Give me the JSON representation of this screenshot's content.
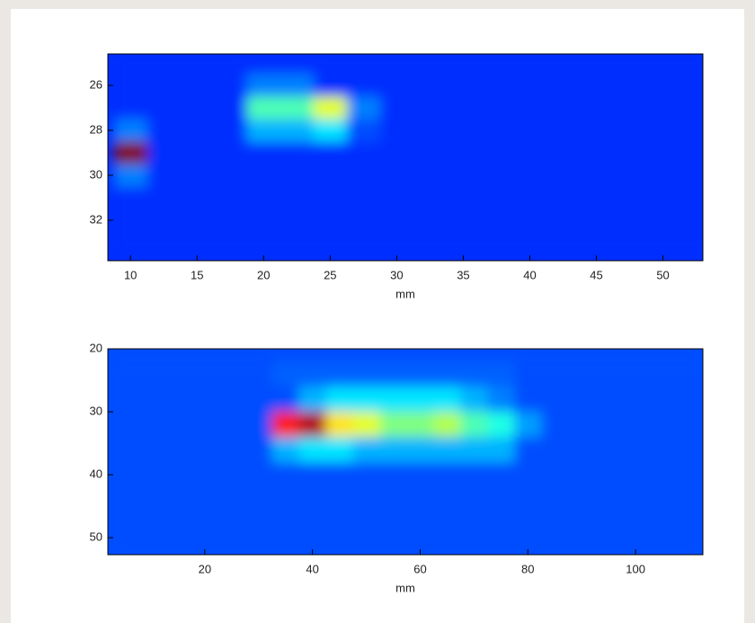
{
  "chart_data": [
    {
      "type": "heatmap",
      "xlabel": "mm",
      "x": [
        10,
        12.5,
        15,
        17.5,
        20,
        22.5,
        25,
        27.5,
        30,
        32.5,
        35,
        37.5,
        40,
        42.5,
        45,
        47.5,
        50,
        52.5
      ],
      "y": [
        25,
        26,
        27,
        28,
        29,
        30,
        31,
        32,
        33
      ],
      "values": [
        [
          0.17,
          0.17,
          0.17,
          0.17,
          0.17,
          0.17,
          0.17,
          0.17,
          0.17,
          0.17,
          0.17,
          0.17,
          0.17,
          0.17,
          0.17,
          0.17,
          0.17,
          0.17
        ],
        [
          0.17,
          0.17,
          0.17,
          0.17,
          0.25,
          0.25,
          0.17,
          0.17,
          0.17,
          0.17,
          0.17,
          0.17,
          0.17,
          0.17,
          0.17,
          0.17,
          0.17,
          0.17
        ],
        [
          0.17,
          0.17,
          0.17,
          0.17,
          0.45,
          0.45,
          0.6,
          0.25,
          0.17,
          0.17,
          0.17,
          0.17,
          0.17,
          0.17,
          0.17,
          0.17,
          0.17,
          0.17
        ],
        [
          0.25,
          0.17,
          0.17,
          0.17,
          0.3,
          0.3,
          0.35,
          0.2,
          0.17,
          0.17,
          0.17,
          0.17,
          0.17,
          0.17,
          0.17,
          0.17,
          0.17,
          0.17
        ],
        [
          1.0,
          0.17,
          0.17,
          0.17,
          0.17,
          0.17,
          0.17,
          0.17,
          0.17,
          0.17,
          0.17,
          0.17,
          0.17,
          0.17,
          0.17,
          0.17,
          0.17,
          0.17
        ],
        [
          0.25,
          0.17,
          0.17,
          0.17,
          0.17,
          0.17,
          0.17,
          0.17,
          0.17,
          0.17,
          0.17,
          0.17,
          0.17,
          0.17,
          0.17,
          0.17,
          0.17,
          0.17
        ],
        [
          0.17,
          0.17,
          0.17,
          0.17,
          0.17,
          0.17,
          0.17,
          0.17,
          0.17,
          0.17,
          0.17,
          0.17,
          0.17,
          0.17,
          0.17,
          0.17,
          0.17,
          0.17
        ],
        [
          0.17,
          0.17,
          0.17,
          0.17,
          0.17,
          0.17,
          0.17,
          0.17,
          0.17,
          0.17,
          0.17,
          0.17,
          0.17,
          0.17,
          0.17,
          0.17,
          0.17,
          0.17
        ],
        [
          0.17,
          0.17,
          0.17,
          0.17,
          0.17,
          0.17,
          0.17,
          0.17,
          0.17,
          0.17,
          0.17,
          0.17,
          0.17,
          0.17,
          0.17,
          0.17,
          0.17,
          0.17
        ]
      ],
      "xlim": [
        8.3,
        53
      ],
      "ylim": [
        24.6,
        33.8
      ],
      "y_reversed": true,
      "xticks": [
        10,
        15,
        20,
        25,
        30,
        35,
        40,
        45,
        50
      ],
      "yticks": [
        26,
        28,
        30,
        32
      ]
    },
    {
      "type": "heatmap",
      "xlabel": "mm",
      "x": [
        5,
        10,
        15,
        20,
        25,
        30,
        35,
        40,
        45,
        50,
        55,
        60,
        65,
        70,
        75,
        80,
        85,
        90,
        95,
        100,
        105,
        110
      ],
      "y": [
        24,
        28,
        32,
        36,
        40,
        44,
        48,
        52
      ],
      "values": [
        [
          0.2,
          0.2,
          0.2,
          0.2,
          0.2,
          0.2,
          0.22,
          0.22,
          0.22,
          0.22,
          0.22,
          0.22,
          0.22,
          0.22,
          0.22,
          0.2,
          0.2,
          0.2,
          0.2,
          0.2,
          0.2,
          0.2
        ],
        [
          0.2,
          0.2,
          0.2,
          0.2,
          0.2,
          0.2,
          0.2,
          0.3,
          0.35,
          0.35,
          0.35,
          0.35,
          0.35,
          0.3,
          0.25,
          0.2,
          0.2,
          0.2,
          0.2,
          0.2,
          0.2,
          0.2
        ],
        [
          0.2,
          0.2,
          0.2,
          0.2,
          0.2,
          0.2,
          0.85,
          0.95,
          0.65,
          0.6,
          0.5,
          0.5,
          0.55,
          0.45,
          0.4,
          0.28,
          0.2,
          0.2,
          0.2,
          0.2,
          0.2,
          0.2
        ],
        [
          0.2,
          0.2,
          0.2,
          0.2,
          0.2,
          0.2,
          0.3,
          0.35,
          0.35,
          0.3,
          0.3,
          0.3,
          0.3,
          0.3,
          0.3,
          0.2,
          0.2,
          0.2,
          0.2,
          0.2,
          0.2,
          0.2
        ],
        [
          0.2,
          0.2,
          0.2,
          0.2,
          0.2,
          0.2,
          0.2,
          0.2,
          0.2,
          0.2,
          0.2,
          0.2,
          0.2,
          0.2,
          0.2,
          0.2,
          0.2,
          0.2,
          0.2,
          0.2,
          0.2,
          0.2
        ],
        [
          0.2,
          0.2,
          0.2,
          0.2,
          0.2,
          0.2,
          0.2,
          0.2,
          0.2,
          0.2,
          0.2,
          0.2,
          0.2,
          0.2,
          0.2,
          0.2,
          0.2,
          0.2,
          0.2,
          0.2,
          0.2,
          0.2
        ],
        [
          0.2,
          0.2,
          0.2,
          0.2,
          0.2,
          0.2,
          0.2,
          0.2,
          0.2,
          0.2,
          0.2,
          0.2,
          0.2,
          0.2,
          0.2,
          0.2,
          0.2,
          0.2,
          0.2,
          0.2,
          0.2,
          0.2
        ],
        [
          0.2,
          0.2,
          0.2,
          0.2,
          0.2,
          0.2,
          0.2,
          0.2,
          0.2,
          0.2,
          0.2,
          0.2,
          0.2,
          0.2,
          0.2,
          0.2,
          0.2,
          0.2,
          0.2,
          0.2,
          0.2,
          0.2
        ]
      ],
      "xlim": [
        2,
        112.5
      ],
      "ylim": [
        20,
        52.7
      ],
      "y_reversed": true,
      "xticks": [
        20,
        40,
        60,
        80,
        100
      ],
      "yticks": [
        20,
        30,
        40,
        50
      ]
    }
  ]
}
